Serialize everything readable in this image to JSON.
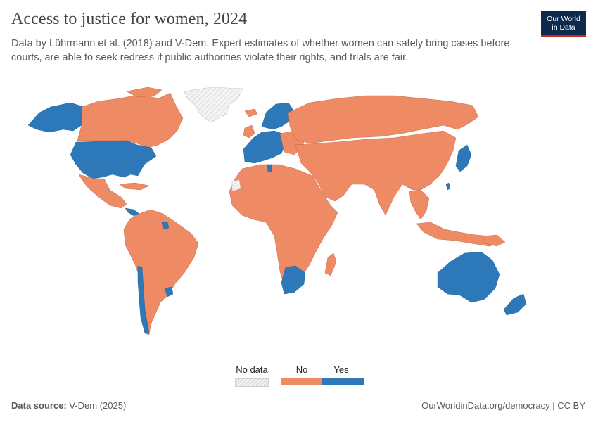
{
  "header": {
    "title": "Access to justice for women, 2024",
    "subtitle": "Data by Lührmann et al. (2018) and V-Dem. Expert estimates of whether women can safely bring cases before courts, are able to seek redress if public authorities violate their rights, and trials are fair.",
    "logo_line1": "Our World",
    "logo_line2": "in Data"
  },
  "legend": {
    "no_data": "No data",
    "no": "No",
    "yes": "Yes"
  },
  "colors": {
    "no": "#ee8a64",
    "yes": "#2c78b9",
    "no_data": "#e6e6e6",
    "logo_bg": "#0c2a4d",
    "logo_accent": "#ce261e"
  },
  "footer": {
    "source_label": "Data source:",
    "source_value": "V-Dem (2025)",
    "link": "OurWorldinData.org/democracy | CC BY"
  },
  "map": {
    "year": 2024,
    "regions_yes": [
      "United States",
      "Alaska",
      "Norway",
      "Sweden",
      "Finland",
      "Western Europe",
      "Japan",
      "Taiwan",
      "Costa Rica",
      "Panama",
      "Suriname",
      "Chile",
      "Uruguay",
      "Botswana",
      "South Africa",
      "Australia",
      "New Zealand",
      "Tunisia"
    ],
    "regions_no": [
      "Canada",
      "Mexico",
      "Central America",
      "Caribbean",
      "South America",
      "Africa",
      "Russia",
      "Middle East",
      "Central Asia",
      "South Asia",
      "China",
      "Southeast Asia",
      "Indonesia",
      "Papua New Guinea",
      "Madagascar",
      "Iceland",
      "United Kingdom",
      "Eastern Europe"
    ],
    "regions_no_data": [
      "Greenland",
      "Western Sahara"
    ]
  }
}
